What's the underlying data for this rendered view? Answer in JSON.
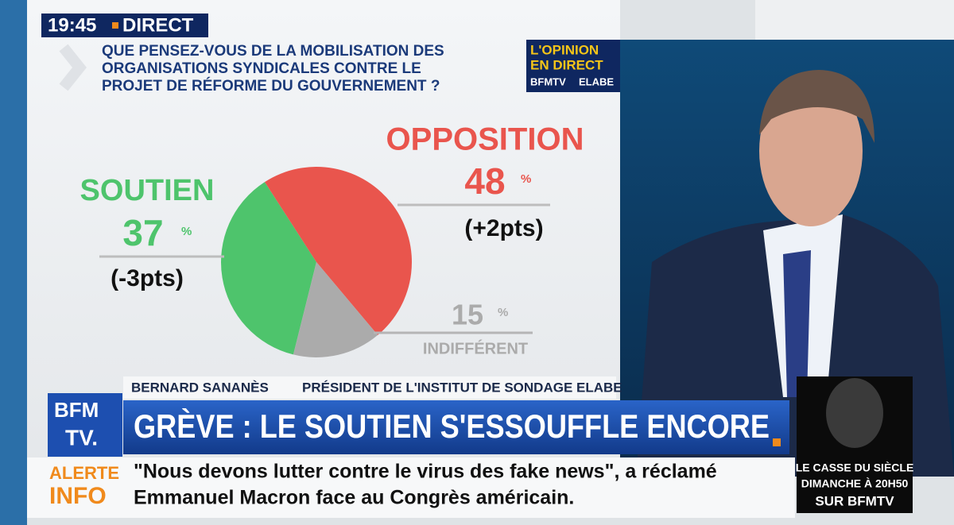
{
  "header": {
    "time": "19:45",
    "live": "DIRECT"
  },
  "question": [
    "QUE PENSEZ-VOUS DE LA MOBILISATION DES",
    "ORGANISATIONS SYNDICALES CONTRE LE",
    "PROJET DE RÉFORME DU GOUVERNEMENT ?"
  ],
  "logo": {
    "line1": "L'OPINION",
    "line2": "EN DIRECT",
    "channel": "BFMTV",
    "partner": "ELABE"
  },
  "chart_data": {
    "type": "pie",
    "categories": [
      "SOUTIEN",
      "OPPOSITION",
      "INDIFFÉRENT"
    ],
    "values": [
      37,
      48,
      15
    ],
    "unit": "%",
    "changes": [
      "(-3pts)",
      "(+2pts)",
      null
    ],
    "colors": [
      "#4ec46c",
      "#e9554d",
      "#ababab"
    ]
  },
  "lower_third": {
    "name": "BERNARD SANANÈS",
    "role": "PRÉSIDENT DE L'INSTITUT DE SONDAGE ELABE",
    "channel_logo": [
      "BFM",
      "TV."
    ],
    "headline": "GRÈVE : LE SOUTIEN S'ESSOUFFLE ENCORE"
  },
  "ticker": {
    "label": [
      "ALERTE",
      "INFO"
    ],
    "lines": [
      "\"Nous devons lutter contre le virus des fake news\", a réclamé",
      "Emmanuel Macron face au Congrès américain."
    ]
  },
  "promo": {
    "lines": [
      "LE CASSE DU SIÈCLE",
      "DIMANCHE À 20H50",
      "SUR BFMTV"
    ]
  }
}
